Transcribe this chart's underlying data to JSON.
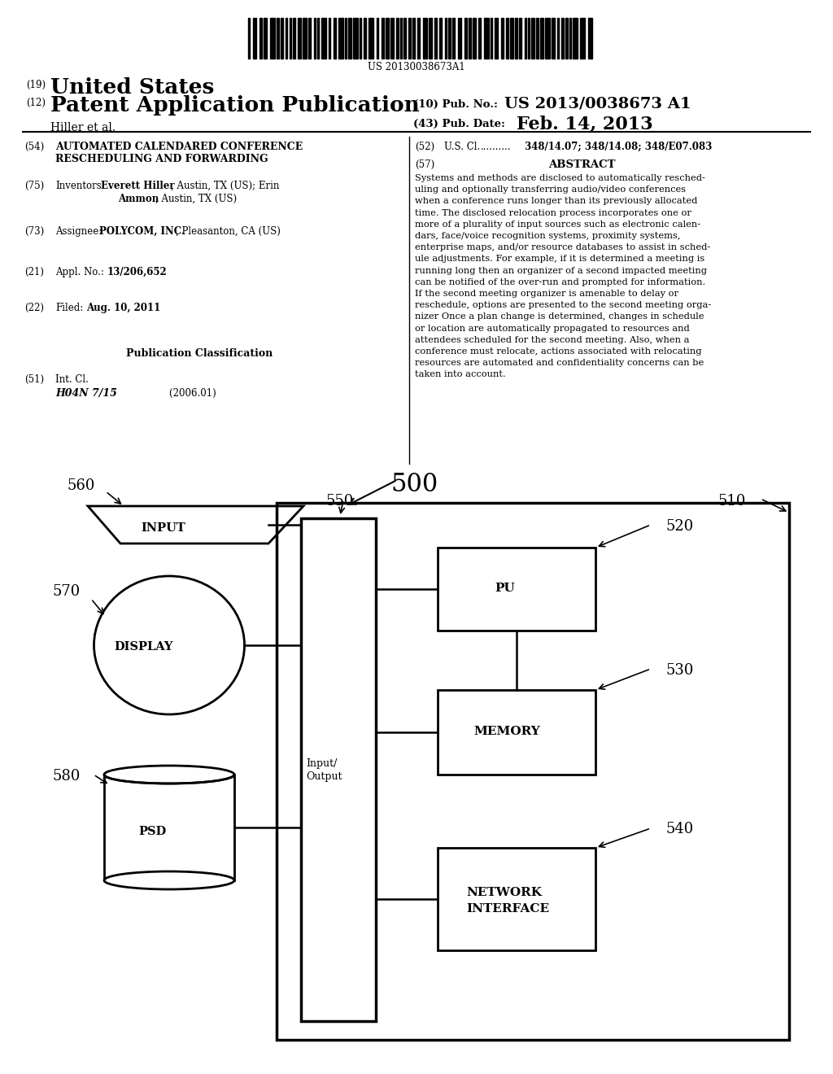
{
  "background_color": "#ffffff",
  "barcode_text": "US 20130038673A1",
  "abs_lines": [
    "Systems and methods are disclosed to automatically resched-",
    "uling and optionally transferring audio/video conferences",
    "when a conference runs longer than its previously allocated",
    "time. The disclosed relocation process incorporates one or",
    "more of a plurality of input sources such as electronic calen-",
    "dars, face/voice recognition systems, proximity systems,",
    "enterprise maps, and/or resource databases to assist in sched-",
    "ule adjustments. For example, if it is determined a meeting is",
    "running long then an organizer of a second impacted meeting",
    "can be notified of the over-run and prompted for information.",
    "If the second meeting organizer is amenable to delay or",
    "reschedule, options are presented to the second meeting orga-",
    "nizer Once a plan change is determined, changes in schedule",
    "or location are automatically propagated to resources and",
    "attendees scheduled for the second meeting. Also, when a",
    "conference must relocate, actions associated with relocating",
    "resources are automated and confidentiality concerns can be",
    "taken into account."
  ]
}
